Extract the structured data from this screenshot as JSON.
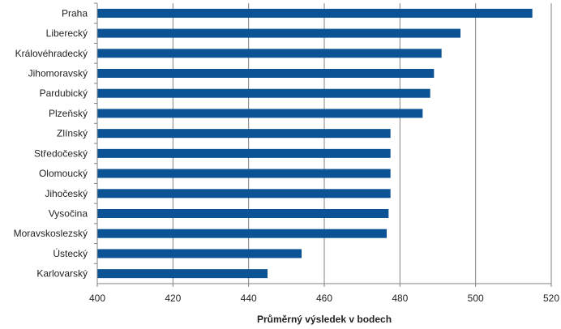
{
  "chart_data": {
    "type": "bar",
    "orientation": "horizontal",
    "title": "",
    "xlabel": "Průměrný výsledek v bodech",
    "ylabel": "",
    "categories": [
      "Praha",
      "Liberecký",
      "Královéhradecký",
      "Jihomoravský",
      "Pardubický",
      "Plzeňský",
      "Zlínský",
      "Středočeský",
      "Olomoucký",
      "Jihočeský",
      "Vysočina",
      "Moravskoslezský",
      "Ústecký",
      "Karlovarský"
    ],
    "values": [
      515,
      496,
      491,
      489,
      488,
      486,
      477.5,
      477.5,
      477.5,
      477.5,
      477,
      476.5,
      454,
      445
    ],
    "xlim": [
      400,
      520
    ],
    "xticks": [
      "400",
      "420",
      "440",
      "460",
      "480",
      "500",
      "520"
    ],
    "grid": "vertical",
    "legend": "none",
    "bar_color": "#0b5394",
    "grid_color": "#808080"
  }
}
